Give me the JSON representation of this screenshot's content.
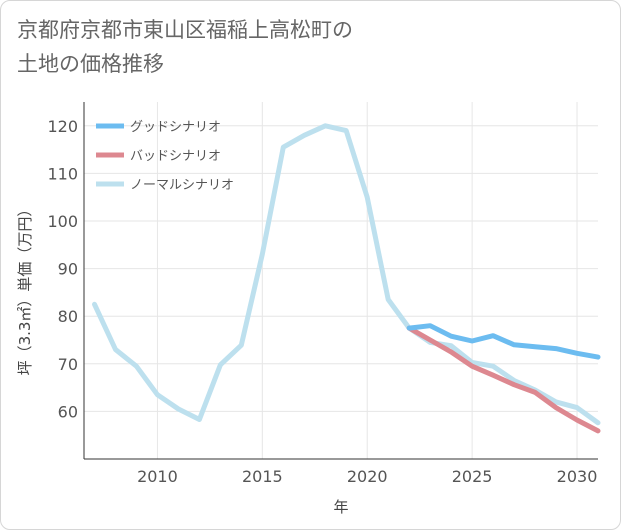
{
  "title_lines": [
    "京都府京都市東山区福稲上高松町の",
    "土地の価格推移"
  ],
  "chart_data": {
    "type": "line",
    "title": "京都府京都市東山区福稲上高松町の土地の価格推移",
    "xlabel": "年",
    "ylabel": "坪（3.3㎡）単価（万円）",
    "xlim": [
      2006.5,
      2031
    ],
    "ylim": [
      50,
      125
    ],
    "xticks": [
      2010,
      2015,
      2020,
      2025,
      2030
    ],
    "yticks": [
      60,
      70,
      80,
      90,
      100,
      110,
      120
    ],
    "grid": true,
    "legend_position": "top-left",
    "series": [
      {
        "name": "グッドシナリオ",
        "color": "#6cbcf0",
        "x": [
          2022,
          2023,
          2024,
          2025,
          2026,
          2027,
          2028,
          2029,
          2030,
          2031
        ],
        "values": [
          77.5,
          78,
          75.8,
          74.8,
          75.9,
          74,
          73.6,
          73.2,
          72.2,
          71.4
        ]
      },
      {
        "name": "バッドシナリオ",
        "color": "#dd8890",
        "x": [
          2022,
          2023,
          2024,
          2025,
          2026,
          2027,
          2028,
          2029,
          2030,
          2031
        ],
        "values": [
          77.5,
          75,
          72.5,
          69.5,
          67.6,
          65.6,
          64,
          60.8,
          58.2,
          55.9
        ]
      },
      {
        "name": "ノーマルシナリオ",
        "color": "#bde0ee",
        "x": [
          2007,
          2008,
          2009,
          2010,
          2011,
          2012,
          2013,
          2014,
          2015,
          2016,
          2017,
          2018,
          2019,
          2020,
          2021,
          2022,
          2023,
          2024,
          2025,
          2026,
          2027,
          2028,
          2029,
          2030,
          2031
        ],
        "values": [
          82.5,
          73,
          69.5,
          63.5,
          60.5,
          58.3,
          69.8,
          73.9,
          93,
          115.5,
          118,
          120,
          119,
          105,
          83.5,
          77.5,
          74.5,
          73.8,
          70.3,
          69.5,
          66.5,
          64.5,
          62,
          60.8,
          57.6
        ]
      }
    ]
  }
}
